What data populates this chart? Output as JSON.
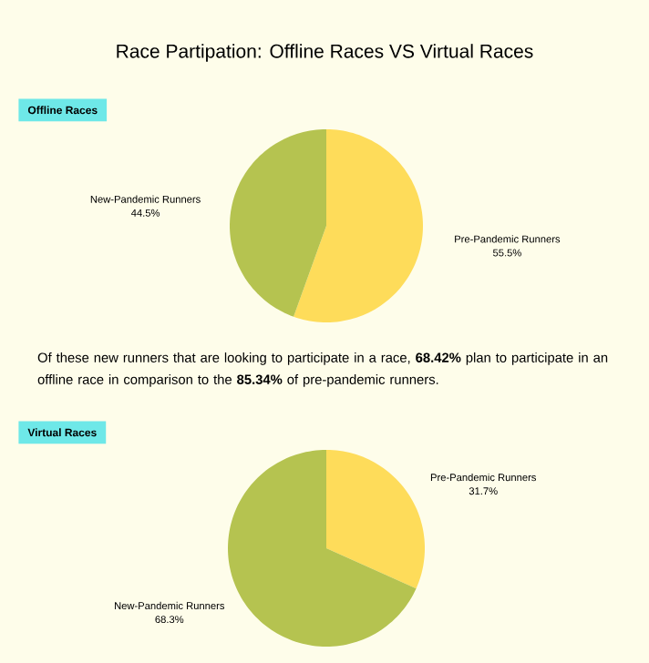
{
  "chart_data": [
    {
      "type": "pie",
      "title": "Race Partipation: Offline Races VS Virtual Races",
      "subtitle": "Offline Races",
      "categories": [
        "Pre-Pandemic Runners",
        "New-Pandemic Runners"
      ],
      "values": [
        55.5,
        44.5
      ],
      "colors": [
        "#fedc5a",
        "#b5c350"
      ],
      "value_labels": [
        "55.5%",
        "44.5%"
      ],
      "annotations": [
        "Of these new runners that are looking to participate in a race, **68.42%** plan to participate in an offline race in comparison to the **85.34%** of pre-pandemic runners."
      ]
    },
    {
      "type": "pie",
      "subtitle": "Virtual Races",
      "categories": [
        "Pre-Pandemic Runners",
        "New-Pandemic Runners"
      ],
      "values": [
        31.7,
        68.3
      ],
      "colors": [
        "#fedc5a",
        "#b5c350"
      ],
      "value_labels": [
        "31.7%",
        "68.3%"
      ]
    }
  ]
}
